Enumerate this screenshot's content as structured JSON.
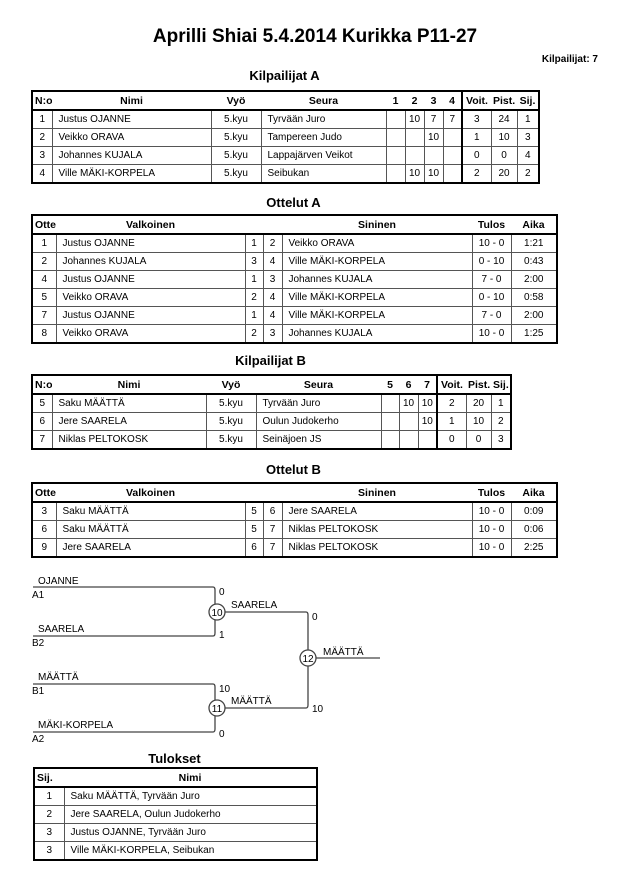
{
  "title": "Aprilli Shiai  5.4.2014  Kurikka    P11-27",
  "competitor_count": "Kilpailijat: 7",
  "competitors_a": {
    "heading": "Kilpailijat A",
    "headers": [
      "N:o",
      "Nimi",
      "Vyö",
      "Seura",
      "1",
      "2",
      "3",
      "4",
      "Voit.",
      "Pist.",
      "Sij."
    ],
    "rows": [
      [
        "1",
        "Justus OJANNE",
        "5.kyu",
        "Tyrvään Juro",
        "",
        "10",
        "7",
        "7",
        "3",
        "24",
        "1"
      ],
      [
        "2",
        "Veikko ORAVA",
        "5.kyu",
        "Tampereen Judo",
        "",
        "",
        "10",
        "",
        "1",
        "10",
        "3"
      ],
      [
        "3",
        "Johannes KUJALA",
        "5.kyu",
        "Lappajärven Veikot",
        "",
        "",
        "",
        "",
        "0",
        "0",
        "4"
      ],
      [
        "4",
        "Ville MÄKI-KORPELA",
        "5.kyu",
        "Seibukan",
        "",
        "10",
        "10",
        "",
        "2",
        "20",
        "2"
      ]
    ]
  },
  "matches_a": {
    "heading": "Ottelut A",
    "headers": [
      "Ottelu",
      "Valkoinen",
      "",
      "",
      "Sininen",
      "Tulos",
      "Aika"
    ],
    "rows": [
      [
        "1",
        "Justus OJANNE",
        "1",
        "2",
        "Veikko ORAVA",
        "10 - 0",
        "1:21"
      ],
      [
        "2",
        "Johannes KUJALA",
        "3",
        "4",
        "Ville MÄKI-KORPELA",
        "0 - 10",
        "0:43"
      ],
      [
        "4",
        "Justus OJANNE",
        "1",
        "3",
        "Johannes KUJALA",
        "7 - 0",
        "2:00"
      ],
      [
        "5",
        "Veikko ORAVA",
        "2",
        "4",
        "Ville MÄKI-KORPELA",
        "0 - 10",
        "0:58"
      ],
      [
        "7",
        "Justus OJANNE",
        "1",
        "4",
        "Ville MÄKI-KORPELA",
        "7 - 0",
        "2:00"
      ],
      [
        "8",
        "Veikko ORAVA",
        "2",
        "3",
        "Johannes KUJALA",
        "10 - 0",
        "1:25"
      ]
    ]
  },
  "competitors_b": {
    "heading": "Kilpailijat B",
    "headers": [
      "N:o",
      "Nimi",
      "Vyö",
      "Seura",
      "5",
      "6",
      "7",
      "Voit.",
      "Pist.",
      "Sij."
    ],
    "rows": [
      [
        "5",
        "Saku MÄÄTTÄ",
        "5.kyu",
        "Tyrvään Juro",
        "",
        "10",
        "10",
        "2",
        "20",
        "1"
      ],
      [
        "6",
        "Jere SAARELA",
        "5.kyu",
        "Oulun Judokerho",
        "",
        "",
        "10",
        "1",
        "10",
        "2"
      ],
      [
        "7",
        "Niklas PELTOKOSK",
        "5.kyu",
        "Seinäjoen JS",
        "",
        "",
        "",
        "0",
        "0",
        "3"
      ]
    ]
  },
  "matches_b": {
    "heading": "Ottelut B",
    "headers": [
      "Ottelu",
      "Valkoinen",
      "",
      "",
      "Sininen",
      "Tulos",
      "Aika"
    ],
    "rows": [
      [
        "3",
        "Saku MÄÄTTÄ",
        "5",
        "6",
        "Jere SAARELA",
        "10 - 0",
        "0:09"
      ],
      [
        "6",
        "Saku MÄÄTTÄ",
        "5",
        "7",
        "Niklas PELTOKOSK",
        "10 - 0",
        "0:06"
      ],
      [
        "9",
        "Jere SAARELA",
        "6",
        "7",
        "Niklas PELTOKOSK",
        "10 - 0",
        "2:25"
      ]
    ]
  },
  "bracket": {
    "semi1": {
      "number": "10",
      "top": {
        "name": "OJANNE",
        "seed": "A1",
        "score": "0"
      },
      "bottom": {
        "name": "SAARELA",
        "seed": "B2",
        "score": "1"
      },
      "winner": "SAARELA",
      "final_score": "0"
    },
    "semi2": {
      "number": "11",
      "top": {
        "name": "MÄÄTTÄ",
        "seed": "B1",
        "score": "10"
      },
      "bottom": {
        "name": "MÄKI-KORPELA",
        "seed": "A2",
        "score": "0"
      },
      "winner": "MÄÄTTÄ",
      "final_score": "10"
    },
    "final": {
      "number": "12",
      "winner": "MÄÄTTÄ"
    }
  },
  "results": {
    "heading": "Tulokset",
    "headers": [
      "Sij.",
      "Nimi"
    ],
    "rows": [
      [
        "1",
        "Saku MÄÄTTÄ, Tyrvään Juro"
      ],
      [
        "2",
        "Jere SAARELA, Oulun Judokerho"
      ],
      [
        "3",
        "Justus OJANNE, Tyrvään Juro"
      ],
      [
        "3",
        "Ville MÄKI-KORPELA, Seibukan"
      ]
    ]
  }
}
